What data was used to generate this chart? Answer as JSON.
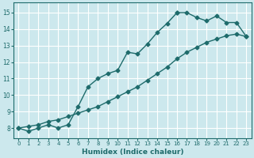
{
  "xlabel": "Humidex (Indice chaleur)",
  "xlim": [
    -0.5,
    23.5
  ],
  "ylim": [
    7.4,
    15.6
  ],
  "xticks": [
    0,
    1,
    2,
    3,
    4,
    5,
    6,
    7,
    8,
    9,
    10,
    11,
    12,
    13,
    14,
    15,
    16,
    17,
    18,
    19,
    20,
    21,
    22,
    23
  ],
  "yticks": [
    8,
    9,
    10,
    11,
    12,
    13,
    14,
    15
  ],
  "bg_color": "#cce8ed",
  "grid_color": "#ffffff",
  "line_color": "#1e6b6b",
  "line1_x": [
    0,
    1,
    2,
    3,
    4,
    5,
    6,
    7,
    8,
    9,
    10,
    11,
    12,
    13,
    14,
    15,
    16
  ],
  "line1_y": [
    8.0,
    7.8,
    8.0,
    8.2,
    8.0,
    8.2,
    9.3,
    10.5,
    11.0,
    11.3,
    11.5,
    12.6,
    12.5,
    13.1,
    13.8,
    14.35,
    15.0
  ],
  "line2_x": [
    16,
    17,
    18,
    19,
    20,
    21,
    22,
    23
  ],
  "line2_y": [
    15.0,
    15.0,
    14.7,
    14.5,
    14.8,
    14.4,
    14.4,
    13.55
  ],
  "line3_x": [
    0,
    1,
    2,
    3,
    4,
    5,
    6,
    7,
    8,
    9,
    10,
    11,
    12,
    13,
    14,
    15,
    16,
    17,
    18,
    19,
    20,
    21,
    22,
    23
  ],
  "line3_y": [
    8.0,
    8.1,
    8.2,
    8.4,
    8.5,
    8.7,
    8.9,
    9.1,
    9.3,
    9.6,
    9.9,
    10.2,
    10.5,
    10.9,
    11.3,
    11.7,
    12.2,
    12.6,
    12.9,
    13.2,
    13.4,
    13.6,
    13.7,
    13.55
  ]
}
